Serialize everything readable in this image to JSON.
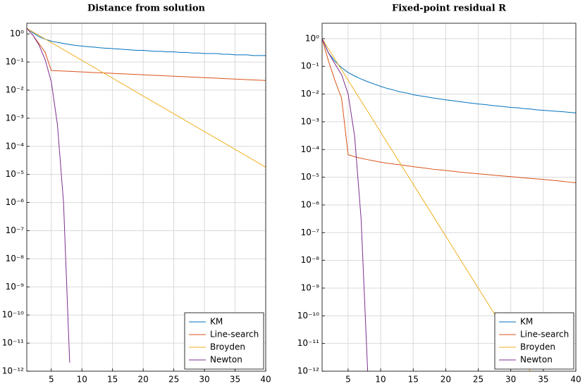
{
  "chart_data": [
    {
      "type": "line",
      "title": "Distance from solution",
      "yscale": "log",
      "grid": true,
      "legend": "lower right",
      "xlim": [
        1,
        40
      ],
      "ylim": [
        1e-12,
        2.4
      ],
      "xticks": [
        5,
        10,
        15,
        20,
        25,
        30,
        35,
        40
      ],
      "yticks": [
        {
          "value": 1,
          "label": "10⁰"
        },
        {
          "value": 0.1,
          "label": "10⁻¹"
        },
        {
          "value": 0.01,
          "label": "10⁻²"
        },
        {
          "value": 0.001,
          "label": "10⁻³"
        },
        {
          "value": 0.0001,
          "label": "10⁻⁴"
        },
        {
          "value": 1e-05,
          "label": "10⁻⁵"
        },
        {
          "value": 1e-06,
          "label": "10⁻⁶"
        },
        {
          "value": 1e-07,
          "label": "10⁻⁷"
        },
        {
          "value": 1e-08,
          "label": "10⁻⁸"
        },
        {
          "value": 1e-09,
          "label": "10⁻⁹"
        },
        {
          "value": 1e-10,
          "label": "10⁻¹⁰"
        },
        {
          "value": 1e-11,
          "label": "10⁻¹¹"
        },
        {
          "value": 1e-12,
          "label": "10⁻¹²"
        }
      ],
      "x": [
        1,
        2,
        3,
        4,
        5,
        6,
        7,
        8,
        9,
        10,
        11,
        12,
        13,
        14,
        15,
        16,
        17,
        18,
        19,
        20,
        21,
        22,
        23,
        24,
        25,
        26,
        27,
        28,
        29,
        30,
        31,
        32,
        33,
        34,
        35,
        36,
        37,
        38,
        39,
        40
      ],
      "series": [
        {
          "name": "KM",
          "color": "#0072bd",
          "values": [
            1.6,
            1.1,
            0.8,
            0.65,
            0.55,
            0.5,
            0.46,
            0.42,
            0.39,
            0.37,
            0.35,
            0.34,
            0.32,
            0.31,
            0.3,
            0.29,
            0.28,
            0.27,
            0.26,
            0.26,
            0.25,
            0.24,
            0.24,
            0.23,
            0.23,
            0.22,
            0.22,
            0.21,
            0.21,
            0.2,
            0.2,
            0.2,
            0.19,
            0.19,
            0.18,
            0.18,
            0.18,
            0.17,
            0.17,
            0.17
          ]
        },
        {
          "name": "Line-search",
          "color": "#d95319",
          "values": [
            1.6,
            0.9,
            0.45,
            0.22,
            0.05,
            0.0488,
            0.0477,
            0.0466,
            0.0455,
            0.0445,
            0.0434,
            0.0424,
            0.0415,
            0.0405,
            0.0396,
            0.0386,
            0.0378,
            0.0369,
            0.036,
            0.0352,
            0.0344,
            0.0336,
            0.0328,
            0.032,
            0.0313,
            0.0306,
            0.0299,
            0.0292,
            0.0285,
            0.0278,
            0.0272,
            0.0266,
            0.0259,
            0.0253,
            0.0248,
            0.0242,
            0.0236,
            0.0231,
            0.0225,
            0.022
          ]
        },
        {
          "name": "Broyden",
          "color": "#edb120",
          "values": [
            1.58,
            1.18,
            0.885,
            0.66,
            0.49,
            0.37,
            0.275,
            0.206,
            0.154,
            0.115,
            0.0857,
            0.064,
            0.0478,
            0.0357,
            0.0267,
            0.0199,
            0.0149,
            0.0111,
            0.0083,
            0.0062,
            0.00464,
            0.00347,
            0.00259,
            0.00193,
            0.00144,
            0.00108,
            0.000805,
            0.000601,
            0.00045,
            0.000336,
            0.000251,
            0.000187,
            0.00014,
            0.000105,
            7.82e-05,
            5.84e-05,
            4.36e-05,
            3.26e-05,
            2.43e-05,
            1.82e-05
          ]
        },
        {
          "name": "Newton",
          "color": "#7e2f8e",
          "values": [
            1.6,
            0.9,
            0.4,
            0.12,
            0.02,
            0.0006,
            1e-06,
            2e-12,
            null,
            null,
            null,
            null,
            null,
            null,
            null,
            null,
            null,
            null,
            null,
            null,
            null,
            null,
            null,
            null,
            null,
            null,
            null,
            null,
            null,
            null,
            null,
            null,
            null,
            null,
            null,
            null,
            null,
            null,
            null,
            null
          ]
        }
      ]
    },
    {
      "type": "line",
      "title": "Fixed-point residual R",
      "yscale": "log",
      "grid": true,
      "legend": "lower right",
      "xlim": [
        1,
        40
      ],
      "ylim": [
        1e-12,
        3.6
      ],
      "xticks": [
        5,
        10,
        15,
        20,
        25,
        30,
        35,
        40
      ],
      "yticks": [
        {
          "value": 1,
          "label": "10⁰"
        },
        {
          "value": 0.1,
          "label": "10⁻¹"
        },
        {
          "value": 0.01,
          "label": "10⁻²"
        },
        {
          "value": 0.001,
          "label": "10⁻³"
        },
        {
          "value": 0.0001,
          "label": "10⁻⁴"
        },
        {
          "value": 1e-05,
          "label": "10⁻⁵"
        },
        {
          "value": 1e-06,
          "label": "10⁻⁶"
        },
        {
          "value": 1e-07,
          "label": "10⁻⁷"
        },
        {
          "value": 1e-08,
          "label": "10⁻⁸"
        },
        {
          "value": 1e-09,
          "label": "10⁻⁹"
        },
        {
          "value": 1e-10,
          "label": "10⁻¹⁰"
        },
        {
          "value": 1e-11,
          "label": "10⁻¹¹"
        },
        {
          "value": 1e-12,
          "label": "10⁻¹²"
        }
      ],
      "x": [
        1,
        2,
        3,
        4,
        5,
        6,
        7,
        8,
        9,
        10,
        11,
        12,
        13,
        14,
        15,
        16,
        17,
        18,
        19,
        20,
        21,
        22,
        23,
        24,
        25,
        26,
        27,
        28,
        29,
        30,
        31,
        32,
        33,
        34,
        35,
        36,
        37,
        38,
        39,
        40
      ],
      "series": [
        {
          "name": "KM",
          "color": "#0072bd",
          "values": [
            1,
            0.3,
            0.15,
            0.09,
            0.06,
            0.045,
            0.035,
            0.028,
            0.023,
            0.019,
            0.016,
            0.014,
            0.012,
            0.011,
            0.0095,
            0.0087,
            0.008,
            0.0073,
            0.0067,
            0.0062,
            0.0058,
            0.0054,
            0.005,
            0.0047,
            0.0044,
            0.0042,
            0.0039,
            0.0037,
            0.0035,
            0.0033,
            0.0032,
            0.003,
            0.0029,
            0.0027,
            0.0026,
            0.0025,
            0.0024,
            0.0023,
            0.0022,
            0.0021
          ]
        },
        {
          "name": "Line-search",
          "color": "#d95319",
          "values": [
            1,
            0.15,
            0.03,
            0.007,
            6.5e-05,
            5.5e-05,
            4.8e-05,
            4.3e-05,
            3.9e-05,
            3.5e-05,
            3.2e-05,
            3e-05,
            2.8e-05,
            2.6e-05,
            2.4e-05,
            2.25e-05,
            2.1e-05,
            1.95e-05,
            1.85e-05,
            1.75e-05,
            1.65e-05,
            1.55e-05,
            1.47e-05,
            1.4e-05,
            1.33e-05,
            1.27e-05,
            1.21e-05,
            1.15e-05,
            1.1e-05,
            1.05e-05,
            1e-05,
            9.5e-06,
            9.1e-06,
            8.7e-06,
            8.3e-06,
            7.9e-06,
            7.5e-06,
            7.1e-06,
            6.7e-06,
            6.3e-06
          ]
        },
        {
          "name": "Broyden",
          "color": "#edb120",
          "values": [
            1,
            0.422,
            0.178,
            0.075,
            0.0316,
            0.0133,
            0.00562,
            0.00237,
            0.001,
            0.000422,
            0.000178,
            7.5e-05,
            3.16e-05,
            1.33e-05,
            5.62e-06,
            2.37e-06,
            1e-06,
            4.22e-07,
            1.78e-07,
            7.5e-08,
            3.16e-08,
            1.33e-08,
            5.62e-09,
            2.37e-09,
            1e-09,
            4.22e-10,
            1.78e-10,
            7.5e-11,
            3.16e-11,
            1.33e-11,
            5.62e-12,
            2.37e-12,
            1e-12,
            null,
            null,
            null,
            null,
            null,
            null,
            null
          ]
        },
        {
          "name": "Newton",
          "color": "#7e2f8e",
          "values": [
            1,
            0.3,
            0.12,
            0.05,
            0.01,
            0.0003,
            3e-07,
            1e-12,
            null,
            null,
            null,
            null,
            null,
            null,
            null,
            null,
            null,
            null,
            null,
            null,
            null,
            null,
            null,
            null,
            null,
            null,
            null,
            null,
            null,
            null,
            null,
            null,
            null,
            null,
            null,
            null,
            null,
            null,
            null,
            null
          ]
        }
      ]
    }
  ]
}
